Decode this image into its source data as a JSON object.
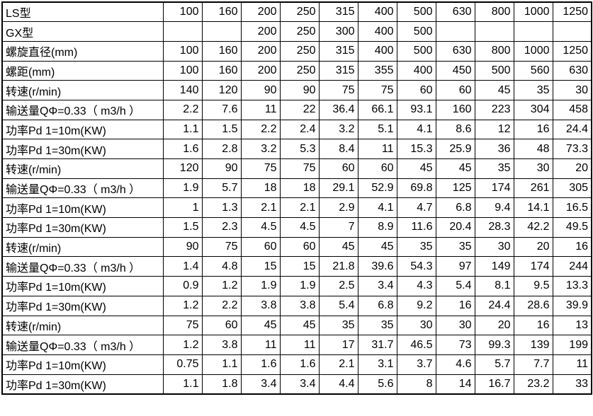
{
  "colors": {
    "border": "#000000",
    "text": "#000000",
    "background": "#ffffff"
  },
  "spec_table": {
    "rows": [
      {
        "label": "LS型",
        "values": [
          "100",
          "160",
          "200",
          "250",
          "315",
          "400",
          "500",
          "630",
          "800",
          "1000",
          "1250"
        ]
      },
      {
        "label": "GX型",
        "values": [
          "",
          "",
          "200",
          "250",
          "300",
          "400",
          "500",
          "",
          "",
          "",
          ""
        ]
      },
      {
        "label": "螺旋直径(mm)",
        "values": [
          "100",
          "160",
          "200",
          "250",
          "315",
          "400",
          "500",
          "630",
          "800",
          "1000",
          "1250"
        ]
      },
      {
        "label": "螺距(mm)",
        "values": [
          "100",
          "160",
          "200",
          "250",
          "315",
          "355",
          "400",
          "450",
          "500",
          "560",
          "630"
        ]
      },
      {
        "label": "转速(r/min)",
        "values": [
          "140",
          "120",
          "90",
          "90",
          "75",
          "75",
          "60",
          "60",
          "45",
          "35",
          "30"
        ]
      },
      {
        "label": "输送量QΦ=0.33（ m3/h ）",
        "values": [
          "2.2",
          "7.6",
          "11",
          "22",
          "36.4",
          "66.1",
          "93.1",
          "160",
          "223",
          "304",
          "458"
        ]
      },
      {
        "label": "功率Pd 1=10m(KW)",
        "values": [
          "1.1",
          "1.5",
          "2.2",
          "2.4",
          "3.2",
          "5.1",
          "4.1",
          "8.6",
          "12",
          "16",
          "24.4"
        ]
      },
      {
        "label": "功率Pd 1=30m(KW)",
        "values": [
          "1.6",
          "2.8",
          "3.2",
          "5.3",
          "8.4",
          "11",
          "15.3",
          "25.9",
          "36",
          "48",
          "73.3"
        ]
      },
      {
        "label": "转速(r/min)",
        "values": [
          "120",
          "90",
          "75",
          "75",
          "60",
          "60",
          "45",
          "45",
          "35",
          "30",
          "20"
        ]
      },
      {
        "label": "输送量QΦ=0.33（ m3/h ）",
        "values": [
          "1.9",
          "5.7",
          "18",
          "18",
          "29.1",
          "52.9",
          "69.8",
          "125",
          "174",
          "261",
          "305"
        ]
      },
      {
        "label": "功率Pd 1=10m(KW)",
        "values": [
          "1",
          "1.3",
          "2.1",
          "2.1",
          "2.9",
          "4.1",
          "4.7",
          "6.8",
          "9.4",
          "14.1",
          "16.5"
        ]
      },
      {
        "label": "功率Pd 1=30m(KW)",
        "values": [
          "1.5",
          "2.3",
          "4.5",
          "4.5",
          "7",
          "8.9",
          "11.6",
          "20.4",
          "28.3",
          "42.2",
          "49.5"
        ]
      },
      {
        "label": "转速(r/min)",
        "values": [
          "90",
          "75",
          "60",
          "60",
          "45",
          "45",
          "35",
          "35",
          "30",
          "20",
          "16"
        ]
      },
      {
        "label": "输送量QΦ=0.33（ m3/h ）",
        "values": [
          "1.4",
          "4.8",
          "15",
          "15",
          "21.8",
          "39.6",
          "54.3",
          "97",
          "149",
          "174",
          "244"
        ]
      },
      {
        "label": "功率Pd 1=10m(KW)",
        "values": [
          "0.9",
          "1.2",
          "1.9",
          "1.9",
          "2.5",
          "3.4",
          "4.3",
          "5.4",
          "8.1",
          "9.5",
          "13.3"
        ]
      },
      {
        "label": "功率Pd 1=30m(KW)",
        "values": [
          "1.2",
          "2.2",
          "3.8",
          "3.8",
          "5.4",
          "6.8",
          "9.2",
          "16",
          "24.4",
          "28.6",
          "39.9"
        ]
      },
      {
        "label": "转速(r/min)",
        "values": [
          "75",
          "60",
          "45",
          "45",
          "35",
          "35",
          "30",
          "30",
          "20",
          "16",
          "13"
        ]
      },
      {
        "label": "输送量QΦ=0.33（ m3/h ）",
        "values": [
          "1.2",
          "3.8",
          "11",
          "11",
          "17",
          "31.7",
          "46.5",
          "73",
          "99.3",
          "139",
          "199"
        ]
      },
      {
        "label": "功率Pd 1=10m(KW)",
        "values": [
          "0.75",
          "1.1",
          "1.6",
          "1.6",
          "2.1",
          "3.1",
          "3.7",
          "4.6",
          "5.7",
          "7.7",
          "11"
        ]
      },
      {
        "label": "功率Pd 1=30m(KW)",
        "values": [
          "1.1",
          "1.8",
          "3.4",
          "3.4",
          "4.4",
          "5.6",
          "8",
          "14",
          "16.7",
          "23.2",
          "33"
        ]
      }
    ]
  }
}
